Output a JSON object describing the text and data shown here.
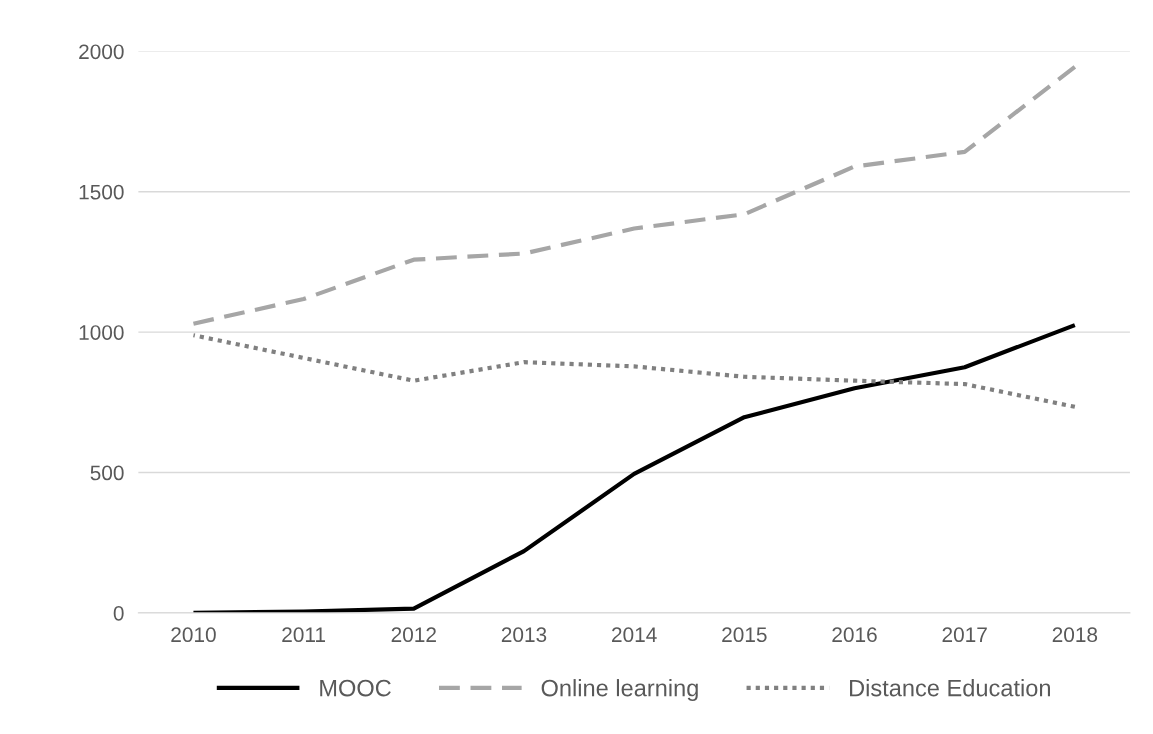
{
  "chart_data": {
    "type": "line",
    "categories": [
      "2010",
      "2011",
      "2012",
      "2013",
      "2014",
      "2015",
      "2016",
      "2017",
      "2018"
    ],
    "series": [
      {
        "name": "MOOC",
        "color": "#000000",
        "line_style": "solid",
        "values": [
          0,
          5,
          15,
          220,
          495,
          697,
          800,
          875,
          1025
        ]
      },
      {
        "name": "Online learning",
        "color": "#a6a6a6",
        "line_style": "dashed",
        "values": [
          1030,
          1118,
          1258,
          1280,
          1369,
          1420,
          1590,
          1642,
          1945
        ]
      },
      {
        "name": "Distance Education",
        "color": "#808080",
        "line_style": "dotted",
        "values": [
          989,
          908,
          827,
          893,
          878,
          841,
          827,
          815,
          734
        ]
      }
    ],
    "ylim": [
      0,
      2000
    ],
    "yticks": [
      0,
      500,
      1000,
      1500,
      2000
    ],
    "grid": "y",
    "legend": "bottom",
    "marker": "none"
  }
}
